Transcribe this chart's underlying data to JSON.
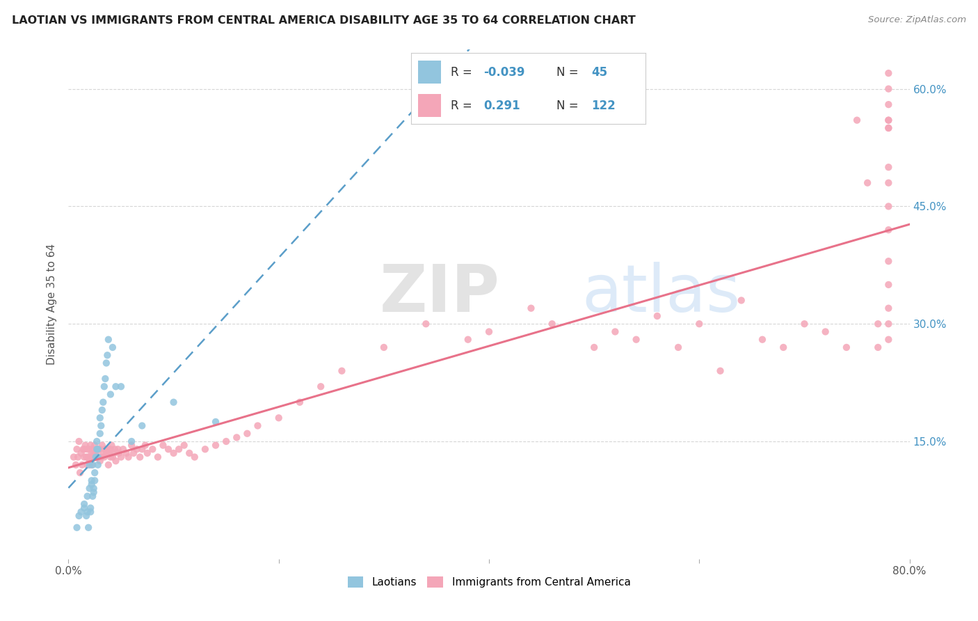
{
  "title": "LAOTIAN VS IMMIGRANTS FROM CENTRAL AMERICA DISABILITY AGE 35 TO 64 CORRELATION CHART",
  "source": "Source: ZipAtlas.com",
  "ylabel": "Disability Age 35 to 64",
  "xlim": [
    0.0,
    0.8
  ],
  "ylim": [
    0.0,
    0.65
  ],
  "background_color": "#ffffff",
  "grid_color": "#cccccc",
  "watermark_zip": "ZIP",
  "watermark_atlas": "atlas",
  "blue_color": "#92c5de",
  "pink_color": "#f4a6b8",
  "blue_line_color": "#5b9ec9",
  "pink_line_color": "#e8728a",
  "text_blue": "#4393c3",
  "text_black": "#333333",
  "legend_box_color": "#e8f0f8",
  "legend_pink_box": "#fce4ec",
  "laotian_x": [
    0.008,
    0.01,
    0.012,
    0.015,
    0.015,
    0.017,
    0.018,
    0.018,
    0.019,
    0.02,
    0.02,
    0.021,
    0.021,
    0.022,
    0.022,
    0.023,
    0.023,
    0.024,
    0.024,
    0.025,
    0.025,
    0.026,
    0.027,
    0.027,
    0.028,
    0.028,
    0.028,
    0.03,
    0.03,
    0.031,
    0.032,
    0.033,
    0.034,
    0.035,
    0.036,
    0.037,
    0.038,
    0.04,
    0.042,
    0.045,
    0.05,
    0.06,
    0.07,
    0.1,
    0.14
  ],
  "laotian_y": [
    0.04,
    0.055,
    0.06,
    0.065,
    0.07,
    0.055,
    0.06,
    0.08,
    0.04,
    0.09,
    0.12,
    0.06,
    0.065,
    0.095,
    0.1,
    0.08,
    0.12,
    0.085,
    0.09,
    0.1,
    0.11,
    0.13,
    0.14,
    0.15,
    0.12,
    0.13,
    0.14,
    0.16,
    0.18,
    0.17,
    0.19,
    0.2,
    0.22,
    0.23,
    0.25,
    0.26,
    0.28,
    0.21,
    0.27,
    0.22,
    0.22,
    0.15,
    0.17,
    0.2,
    0.175
  ],
  "central_x": [
    0.005,
    0.007,
    0.008,
    0.009,
    0.01,
    0.011,
    0.012,
    0.013,
    0.014,
    0.015,
    0.015,
    0.016,
    0.017,
    0.018,
    0.018,
    0.019,
    0.02,
    0.02,
    0.021,
    0.021,
    0.022,
    0.022,
    0.023,
    0.024,
    0.025,
    0.025,
    0.026,
    0.027,
    0.028,
    0.03,
    0.03,
    0.031,
    0.032,
    0.033,
    0.034,
    0.035,
    0.036,
    0.037,
    0.038,
    0.039,
    0.04,
    0.04,
    0.041,
    0.042,
    0.043,
    0.044,
    0.045,
    0.047,
    0.048,
    0.05,
    0.052,
    0.055,
    0.057,
    0.06,
    0.062,
    0.065,
    0.068,
    0.07,
    0.073,
    0.075,
    0.08,
    0.085,
    0.09,
    0.095,
    0.1,
    0.105,
    0.11,
    0.115,
    0.12,
    0.13,
    0.14,
    0.15,
    0.16,
    0.17,
    0.18,
    0.2,
    0.22,
    0.24,
    0.26,
    0.3,
    0.34,
    0.38,
    0.4,
    0.44,
    0.46,
    0.5,
    0.52,
    0.54,
    0.56,
    0.58,
    0.6,
    0.62,
    0.64,
    0.66,
    0.68,
    0.7,
    0.72,
    0.74,
    0.75,
    0.76,
    0.77,
    0.77,
    0.78,
    0.78,
    0.78,
    0.78,
    0.78,
    0.78,
    0.78,
    0.78,
    0.78,
    0.78,
    0.78,
    0.78,
    0.78,
    0.78,
    0.78,
    0.78
  ],
  "central_y": [
    0.13,
    0.12,
    0.14,
    0.13,
    0.15,
    0.11,
    0.135,
    0.12,
    0.14,
    0.13,
    0.14,
    0.145,
    0.13,
    0.12,
    0.14,
    0.13,
    0.125,
    0.14,
    0.13,
    0.145,
    0.12,
    0.135,
    0.14,
    0.135,
    0.13,
    0.145,
    0.135,
    0.14,
    0.13,
    0.14,
    0.125,
    0.13,
    0.145,
    0.135,
    0.13,
    0.14,
    0.135,
    0.14,
    0.12,
    0.135,
    0.13,
    0.14,
    0.145,
    0.13,
    0.135,
    0.14,
    0.125,
    0.14,
    0.135,
    0.13,
    0.14,
    0.135,
    0.13,
    0.145,
    0.135,
    0.14,
    0.13,
    0.14,
    0.145,
    0.135,
    0.14,
    0.13,
    0.145,
    0.14,
    0.135,
    0.14,
    0.145,
    0.135,
    0.13,
    0.14,
    0.145,
    0.15,
    0.155,
    0.16,
    0.17,
    0.18,
    0.2,
    0.22,
    0.24,
    0.27,
    0.3,
    0.28,
    0.29,
    0.32,
    0.3,
    0.27,
    0.29,
    0.28,
    0.31,
    0.27,
    0.3,
    0.24,
    0.33,
    0.28,
    0.27,
    0.3,
    0.29,
    0.27,
    0.56,
    0.48,
    0.27,
    0.3,
    0.56,
    0.48,
    0.6,
    0.62,
    0.28,
    0.3,
    0.56,
    0.45,
    0.55,
    0.58,
    0.42,
    0.32,
    0.5,
    0.55,
    0.35,
    0.38
  ]
}
